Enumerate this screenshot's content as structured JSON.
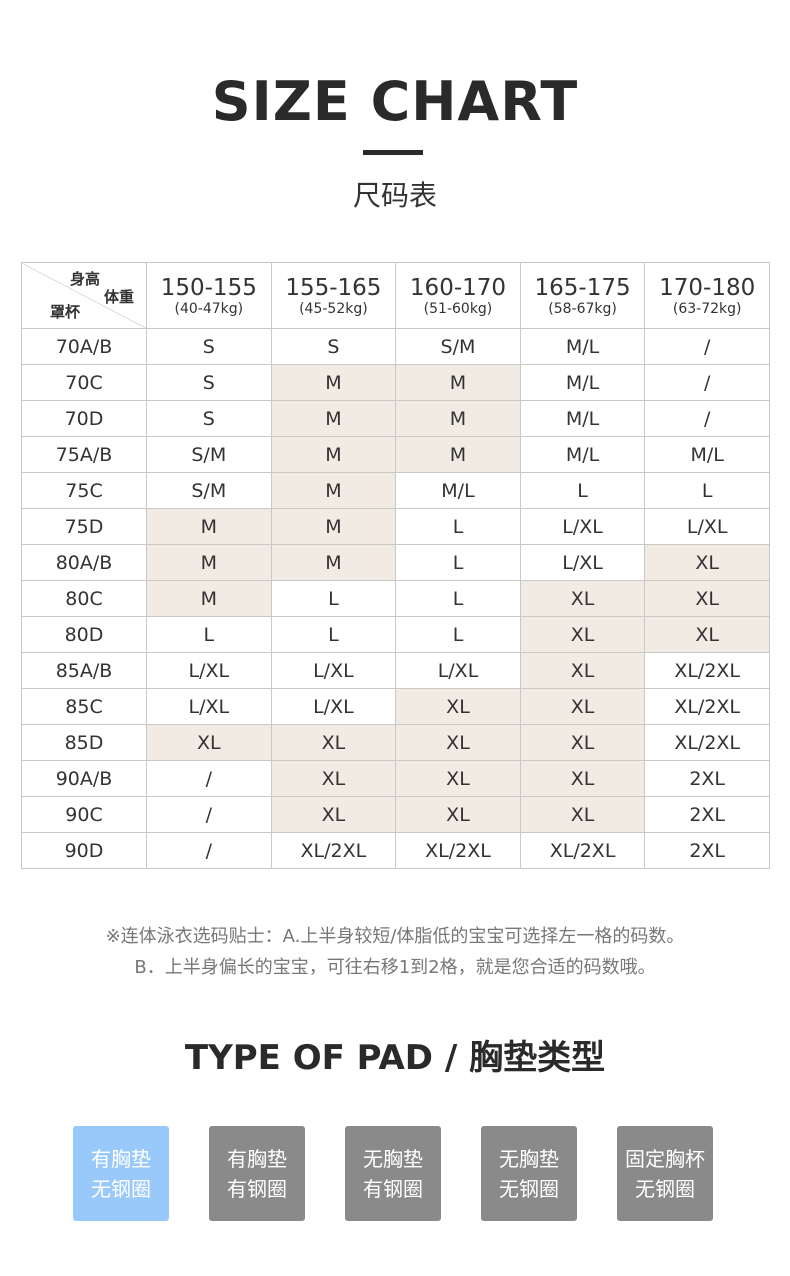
{
  "title": "SIZE CHART",
  "subtitle": "尺码表",
  "table": {
    "corner": {
      "height": "身高",
      "weight": "体重",
      "cup": "罩杯"
    },
    "columns": [
      {
        "height": "150-155",
        "weight": "(40-47kg)"
      },
      {
        "height": "155-165",
        "weight": "(45-52kg)"
      },
      {
        "height": "160-170",
        "weight": "(51-60kg)"
      },
      {
        "height": "165-175",
        "weight": "(58-67kg)"
      },
      {
        "height": "170-180",
        "weight": "(63-72kg)"
      }
    ],
    "highlight_color": "#f2ebe3",
    "rows": [
      {
        "cup": "70A/B",
        "cells": [
          "S",
          "S",
          "S/M",
          "M/L",
          "/"
        ],
        "hl": [
          0,
          0,
          0,
          0,
          0
        ]
      },
      {
        "cup": "70C",
        "cells": [
          "S",
          "M",
          "M",
          "M/L",
          "/"
        ],
        "hl": [
          0,
          1,
          1,
          0,
          0
        ]
      },
      {
        "cup": "70D",
        "cells": [
          "S",
          "M",
          "M",
          "M/L",
          "/"
        ],
        "hl": [
          0,
          1,
          1,
          0,
          0
        ]
      },
      {
        "cup": "75A/B",
        "cells": [
          "S/M",
          "M",
          "M",
          "M/L",
          "M/L"
        ],
        "hl": [
          0,
          1,
          1,
          0,
          0
        ]
      },
      {
        "cup": "75C",
        "cells": [
          "S/M",
          "M",
          "M/L",
          "L",
          "L"
        ],
        "hl": [
          0,
          1,
          0,
          0,
          0
        ]
      },
      {
        "cup": "75D",
        "cells": [
          "M",
          "M",
          "L",
          "L/XL",
          "L/XL"
        ],
        "hl": [
          1,
          1,
          0,
          0,
          0
        ]
      },
      {
        "cup": "80A/B",
        "cells": [
          "M",
          "M",
          "L",
          "L/XL",
          "XL"
        ],
        "hl": [
          1,
          1,
          0,
          0,
          1
        ]
      },
      {
        "cup": "80C",
        "cells": [
          "M",
          "L",
          "L",
          "XL",
          "XL"
        ],
        "hl": [
          1,
          0,
          0,
          1,
          1
        ]
      },
      {
        "cup": "80D",
        "cells": [
          "L",
          "L",
          "L",
          "XL",
          "XL"
        ],
        "hl": [
          0,
          0,
          0,
          1,
          1
        ]
      },
      {
        "cup": "85A/B",
        "cells": [
          "L/XL",
          "L/XL",
          "L/XL",
          "XL",
          "XL/2XL"
        ],
        "hl": [
          0,
          0,
          0,
          1,
          0
        ]
      },
      {
        "cup": "85C",
        "cells": [
          "L/XL",
          "L/XL",
          "XL",
          "XL",
          "XL/2XL"
        ],
        "hl": [
          0,
          0,
          1,
          1,
          0
        ]
      },
      {
        "cup": "85D",
        "cells": [
          "XL",
          "XL",
          "XL",
          "XL",
          "XL/2XL"
        ],
        "hl": [
          1,
          1,
          1,
          1,
          0
        ]
      },
      {
        "cup": "90A/B",
        "cells": [
          "/",
          "XL",
          "XL",
          "XL",
          "2XL"
        ],
        "hl": [
          0,
          1,
          1,
          1,
          0
        ]
      },
      {
        "cup": "90C",
        "cells": [
          "/",
          "XL",
          "XL",
          "XL",
          "2XL"
        ],
        "hl": [
          0,
          1,
          1,
          1,
          0
        ]
      },
      {
        "cup": "90D",
        "cells": [
          "/",
          "XL/2XL",
          "XL/2XL",
          "XL/2XL",
          "2XL"
        ],
        "hl": [
          0,
          0,
          0,
          0,
          0
        ]
      }
    ]
  },
  "notes": [
    "※连体泳衣选码贴士：A.上半身较短/体脂低的宝宝可选择左一格的码数。",
    "B．上半身偏长的宝宝，可往右移1到2格，就是您合适的码数哦。"
  ],
  "pad_title": "TYPE OF PAD / 胸垫类型",
  "pads": [
    {
      "line1": "有胸垫",
      "line2": "无钢圈",
      "selected": true
    },
    {
      "line1": "有胸垫",
      "line2": "有钢圈",
      "selected": false
    },
    {
      "line1": "无胸垫",
      "line2": "有钢圈",
      "selected": false
    },
    {
      "line1": "无胸垫",
      "line2": "无钢圈",
      "selected": false
    },
    {
      "line1": "固定胸杯",
      "line2": "无钢圈",
      "selected": false
    }
  ],
  "colors": {
    "selected": "#99c9fb",
    "unselected": "#8a8a8a"
  }
}
